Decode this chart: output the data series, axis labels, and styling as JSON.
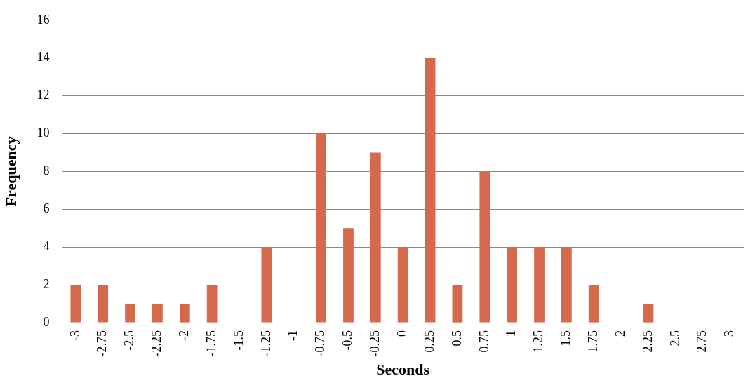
{
  "chart_data": {
    "type": "bar",
    "xlabel": "Seconds",
    "ylabel": "Frequency",
    "categories": [
      "-3",
      "-2.75",
      "-2.5",
      "-2.25",
      "-2",
      "-1.75",
      "-1.5",
      "-1.25",
      "-1",
      "-0.75",
      "-0.5",
      "-0.25",
      "0",
      "0.25",
      "0.5",
      "0.75",
      "1",
      "1.25",
      "1.5",
      "1.75",
      "2",
      "2.25",
      "2.5",
      "2.75",
      "3"
    ],
    "values": [
      2,
      2,
      1,
      1,
      1,
      2,
      0,
      4,
      0,
      10,
      5,
      9,
      4,
      14,
      2,
      8,
      4,
      4,
      4,
      2,
      0,
      1,
      0,
      0,
      0
    ],
    "color": "#d4694c",
    "ylim": [
      0,
      16
    ],
    "yticks": [
      0,
      2,
      4,
      6,
      8,
      10,
      12,
      14,
      16
    ],
    "grid": "y",
    "legend": false
  }
}
